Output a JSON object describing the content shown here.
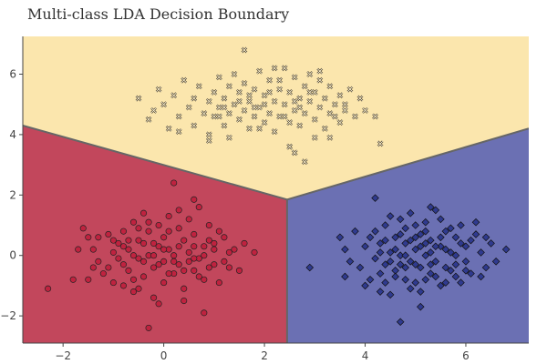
{
  "chart_data": {
    "type": "scatter",
    "title": "Multi-class LDA Decision Boundary",
    "xlabel": "",
    "ylabel": "",
    "xlim": [
      -2.8,
      7.25
    ],
    "ylim": [
      -2.9,
      7.25
    ],
    "x_ticks": [
      -2,
      0,
      2,
      4,
      6
    ],
    "y_ticks": [
      -2,
      0,
      2,
      4,
      6
    ],
    "tick_labels": {
      "x": [
        "−2",
        "0",
        "2",
        "4",
        "6"
      ],
      "y": [
        "−2",
        "0",
        "2",
        "4",
        "6"
      ]
    },
    "grid": false,
    "legend": "none",
    "regions": [
      {
        "color": "#c2475c",
        "polygon": [
          [
            -2.8,
            -2.9
          ],
          [
            2.45,
            -2.9
          ],
          [
            2.45,
            1.85
          ],
          [
            -2.8,
            4.3
          ]
        ]
      },
      {
        "color": "#6b70b3",
        "polygon": [
          [
            2.45,
            -2.9
          ],
          [
            7.25,
            -2.9
          ],
          [
            7.25,
            4.2
          ],
          [
            2.45,
            1.85
          ]
        ]
      },
      {
        "color": "#fbe6ad",
        "polygon": [
          [
            -2.8,
            4.3
          ],
          [
            2.45,
            1.85
          ],
          [
            7.25,
            4.2
          ],
          [
            7.25,
            7.25
          ],
          [
            -2.8,
            7.25
          ]
        ]
      }
    ],
    "boundary_color": "#666666",
    "boundaries": [
      [
        [
          -2.8,
          4.3
        ],
        [
          2.45,
          1.85
        ]
      ],
      [
        [
          2.45,
          1.85
        ],
        [
          7.25,
          4.2
        ]
      ],
      [
        [
          2.45,
          1.85
        ],
        [
          2.45,
          -2.9
        ]
      ]
    ],
    "series": [
      {
        "marker": "circle",
        "color": "#c0223f",
        "points": [
          [
            -2.3,
            -1.1
          ],
          [
            -1.6,
            0.9
          ],
          [
            -1.5,
            0.6
          ],
          [
            -1.4,
            0.2
          ],
          [
            -1.3,
            -0.2
          ],
          [
            -1.5,
            -0.8
          ],
          [
            -1.2,
            -0.6
          ],
          [
            -1.1,
            -0.4
          ],
          [
            -1.0,
            0.1
          ],
          [
            -0.9,
            0.4
          ],
          [
            -1.0,
            -0.9
          ],
          [
            -0.8,
            -0.3
          ],
          [
            -0.8,
            0.8
          ],
          [
            -0.7,
            -0.5
          ],
          [
            -0.7,
            0.2
          ],
          [
            -0.6,
            1.1
          ],
          [
            -0.6,
            -1.2
          ],
          [
            -0.5,
            0.5
          ],
          [
            -0.5,
            -0.1
          ],
          [
            -0.4,
            1.4
          ],
          [
            -0.4,
            -0.7
          ],
          [
            -0.3,
            0.0
          ],
          [
            -0.3,
            0.8
          ],
          [
            -0.2,
            -0.4
          ],
          [
            -0.2,
            -1.4
          ],
          [
            -0.1,
            0.3
          ],
          [
            -0.1,
            1.0
          ],
          [
            0.0,
            -0.2
          ],
          [
            0.0,
            0.6
          ],
          [
            0.0,
            -0.9
          ],
          [
            0.1,
            0.2
          ],
          [
            0.1,
            1.3
          ],
          [
            0.2,
            -0.6
          ],
          [
            0.2,
            0.0
          ],
          [
            0.2,
            2.4
          ],
          [
            0.3,
            0.9
          ],
          [
            0.3,
            -0.3
          ],
          [
            0.4,
            0.5
          ],
          [
            0.4,
            -1.1
          ],
          [
            0.5,
            0.1
          ],
          [
            0.5,
            1.2
          ],
          [
            0.6,
            -0.5
          ],
          [
            0.6,
            0.7
          ],
          [
            0.7,
            -0.1
          ],
          [
            0.7,
            1.6
          ],
          [
            0.8,
            0.3
          ],
          [
            0.8,
            -0.8
          ],
          [
            0.9,
            1.0
          ],
          [
            1.0,
            -0.3
          ],
          [
            1.0,
            0.2
          ],
          [
            1.1,
            -0.9
          ],
          [
            1.2,
            0.6
          ],
          [
            1.3,
            -0.4
          ],
          [
            1.4,
            0.2
          ],
          [
            1.6,
            0.4
          ],
          [
            1.8,
            0.1
          ],
          [
            0.6,
            1.85
          ],
          [
            0.8,
            -1.9
          ],
          [
            -0.3,
            -2.4
          ],
          [
            -0.1,
            -1.6
          ],
          [
            -1.8,
            -0.8
          ],
          [
            -1.1,
            0.7
          ],
          [
            0.4,
            -1.5
          ],
          [
            1.2,
            -0.2
          ],
          [
            -0.6,
            0.0
          ],
          [
            0.9,
            0.5
          ],
          [
            -0.2,
            0.4
          ],
          [
            0.3,
            0.3
          ],
          [
            0.1,
            -0.6
          ],
          [
            -0.4,
            -0.2
          ],
          [
            -1.7,
            0.2
          ],
          [
            -0.9,
            -0.1
          ],
          [
            0.6,
            0.3
          ],
          [
            1.5,
            -0.5
          ],
          [
            -0.5,
            0.9
          ],
          [
            0.2,
            -0.2
          ],
          [
            -0.8,
            -1.0
          ],
          [
            0.7,
            -0.7
          ],
          [
            -0.2,
            0.0
          ],
          [
            0.5,
            -0.2
          ],
          [
            1.1,
            0.8
          ],
          [
            -1.3,
            0.6
          ],
          [
            -0.7,
            0.5
          ],
          [
            0.0,
            0.2
          ],
          [
            0.4,
            -0.5
          ],
          [
            -0.1,
            -0.3
          ],
          [
            1.3,
            0.1
          ],
          [
            -1.4,
            -0.4
          ],
          [
            0.8,
            0.0
          ],
          [
            -0.3,
            1.1
          ],
          [
            -0.6,
            -0.8
          ],
          [
            0.9,
            -0.4
          ],
          [
            0.3,
            1.5
          ],
          [
            -1.0,
            0.5
          ],
          [
            0.6,
            -0.1
          ],
          [
            -0.4,
            0.4
          ],
          [
            1.0,
            0.4
          ],
          [
            -0.8,
            0.3
          ],
          [
            0.1,
            0.8
          ],
          [
            -0.5,
            -1.1
          ]
        ]
      },
      {
        "marker": "diamond",
        "color": "#2f3a8f",
        "points": [
          [
            2.9,
            -0.4
          ],
          [
            3.5,
            0.6
          ],
          [
            3.6,
            0.2
          ],
          [
            3.7,
            -0.2
          ],
          [
            3.6,
            -0.7
          ],
          [
            3.8,
            0.8
          ],
          [
            3.9,
            -0.4
          ],
          [
            4.0,
            0.3
          ],
          [
            4.0,
            -1.0
          ],
          [
            4.1,
            0.6
          ],
          [
            4.2,
            -0.1
          ],
          [
            4.2,
            1.9
          ],
          [
            4.3,
            0.4
          ],
          [
            4.3,
            -0.6
          ],
          [
            4.4,
            1.0
          ],
          [
            4.4,
            -0.3
          ],
          [
            4.5,
            0.1
          ],
          [
            4.5,
            -1.3
          ],
          [
            4.6,
            0.6
          ],
          [
            4.6,
            -0.5
          ],
          [
            4.7,
            1.2
          ],
          [
            4.7,
            0.0
          ],
          [
            4.8,
            -0.8
          ],
          [
            4.8,
            0.4
          ],
          [
            4.9,
            1.4
          ],
          [
            4.9,
            -0.2
          ],
          [
            5.0,
            0.2
          ],
          [
            5.0,
            -0.9
          ],
          [
            5.1,
            0.7
          ],
          [
            5.1,
            -0.4
          ],
          [
            5.2,
            1.1
          ],
          [
            5.2,
            0.0
          ],
          [
            5.3,
            -0.6
          ],
          [
            5.3,
            0.5
          ],
          [
            5.4,
            1.5
          ],
          [
            5.4,
            -0.2
          ],
          [
            5.5,
            0.3
          ],
          [
            5.5,
            -1.0
          ],
          [
            5.6,
            0.8
          ],
          [
            5.6,
            -0.4
          ],
          [
            5.7,
            0.1
          ],
          [
            5.8,
            -0.7
          ],
          [
            5.8,
            0.6
          ],
          [
            5.9,
            1.0
          ],
          [
            6.0,
            -0.2
          ],
          [
            6.0,
            0.3
          ],
          [
            6.1,
            -0.6
          ],
          [
            6.2,
            0.7
          ],
          [
            6.3,
            0.1
          ],
          [
            6.4,
            -0.4
          ],
          [
            6.5,
            0.4
          ],
          [
            6.6,
            -0.2
          ],
          [
            6.8,
            0.2
          ],
          [
            4.7,
            -2.2
          ],
          [
            5.1,
            -1.7
          ],
          [
            5.3,
            1.6
          ],
          [
            4.5,
            1.3
          ],
          [
            5.9,
            -0.9
          ],
          [
            6.2,
            1.1
          ],
          [
            4.1,
            -0.8
          ],
          [
            4.8,
            0.9
          ],
          [
            5.0,
            -0.3
          ],
          [
            5.2,
            0.4
          ],
          [
            4.6,
            0.2
          ],
          [
            5.5,
            0.6
          ],
          [
            5.7,
            -0.5
          ],
          [
            4.9,
            0.5
          ],
          [
            5.4,
            -0.7
          ],
          [
            4.3,
            0.1
          ],
          [
            5.8,
            0.0
          ],
          [
            5.1,
            -1.2
          ],
          [
            4.4,
            -0.9
          ],
          [
            6.1,
            0.5
          ],
          [
            4.7,
            0.7
          ],
          [
            5.3,
            0.1
          ],
          [
            5.6,
            0.2
          ],
          [
            4.8,
            -0.4
          ],
          [
            5.0,
            1.0
          ],
          [
            4.5,
            -0.2
          ],
          [
            5.9,
            0.4
          ],
          [
            6.3,
            -0.7
          ],
          [
            4.2,
            0.8
          ],
          [
            5.2,
            -0.8
          ],
          [
            4.6,
            -0.7
          ],
          [
            5.5,
            1.2
          ],
          [
            4.9,
            -1.1
          ],
          [
            5.7,
            0.9
          ],
          [
            4.4,
            0.5
          ],
          [
            5.4,
            0.3
          ],
          [
            6.0,
            -0.5
          ],
          [
            5.1,
            0.3
          ],
          [
            4.8,
            0.0
          ],
          [
            5.6,
            -0.9
          ],
          [
            5.0,
            0.6
          ],
          [
            4.3,
            -1.2
          ],
          [
            5.3,
            -0.3
          ],
          [
            6.4,
            0.6
          ],
          [
            4.7,
            -0.3
          ],
          [
            5.8,
            -0.3
          ],
          [
            5.2,
            0.8
          ]
        ]
      },
      {
        "marker": "x",
        "color": "#3d3526",
        "points": [
          [
            -0.5,
            5.2
          ],
          [
            -0.3,
            4.5
          ],
          [
            -0.2,
            4.8
          ],
          [
            -0.1,
            5.5
          ],
          [
            0.0,
            5.0
          ],
          [
            0.1,
            4.2
          ],
          [
            0.2,
            5.3
          ],
          [
            0.3,
            4.6
          ],
          [
            0.4,
            5.8
          ],
          [
            0.5,
            4.9
          ],
          [
            0.6,
            5.2
          ],
          [
            0.6,
            4.3
          ],
          [
            0.7,
            5.6
          ],
          [
            0.8,
            4.7
          ],
          [
            0.9,
            5.1
          ],
          [
            0.9,
            4.0
          ],
          [
            1.0,
            5.4
          ],
          [
            1.0,
            4.6
          ],
          [
            1.1,
            5.9
          ],
          [
            1.1,
            4.9
          ],
          [
            1.2,
            5.2
          ],
          [
            1.2,
            4.3
          ],
          [
            1.3,
            5.6
          ],
          [
            1.3,
            4.7
          ],
          [
            1.4,
            5.0
          ],
          [
            1.4,
            6.0
          ],
          [
            1.5,
            4.5
          ],
          [
            1.5,
            5.4
          ],
          [
            1.6,
            4.8
          ],
          [
            1.6,
            5.7
          ],
          [
            1.7,
            4.2
          ],
          [
            1.7,
            5.1
          ],
          [
            1.8,
            4.6
          ],
          [
            1.8,
            5.5
          ],
          [
            1.9,
            4.9
          ],
          [
            1.9,
            6.1
          ],
          [
            2.0,
            4.4
          ],
          [
            2.0,
            5.3
          ],
          [
            2.1,
            4.7
          ],
          [
            2.1,
            5.8
          ],
          [
            2.2,
            5.1
          ],
          [
            2.2,
            4.1
          ],
          [
            2.3,
            5.5
          ],
          [
            2.3,
            4.6
          ],
          [
            2.4,
            6.2
          ],
          [
            2.4,
            5.0
          ],
          [
            2.5,
            4.4
          ],
          [
            2.5,
            5.4
          ],
          [
            2.6,
            4.8
          ],
          [
            2.6,
            5.9
          ],
          [
            2.7,
            5.2
          ],
          [
            2.7,
            4.3
          ],
          [
            2.8,
            5.6
          ],
          [
            2.8,
            4.7
          ],
          [
            2.9,
            5.1
          ],
          [
            2.9,
            6.0
          ],
          [
            3.0,
            4.5
          ],
          [
            3.0,
            5.4
          ],
          [
            3.1,
            4.9
          ],
          [
            3.1,
            5.8
          ],
          [
            3.2,
            5.2
          ],
          [
            3.2,
            4.2
          ],
          [
            3.3,
            5.6
          ],
          [
            3.3,
            4.7
          ],
          [
            3.4,
            5.0
          ],
          [
            3.5,
            4.4
          ],
          [
            3.5,
            5.3
          ],
          [
            3.6,
            4.8
          ],
          [
            3.7,
            5.5
          ],
          [
            3.8,
            4.6
          ],
          [
            3.9,
            5.2
          ],
          [
            4.0,
            4.8
          ],
          [
            4.2,
            4.6
          ],
          [
            4.3,
            3.7
          ],
          [
            1.6,
            6.8
          ],
          [
            0.9,
            3.8
          ],
          [
            1.3,
            3.9
          ],
          [
            2.5,
            3.6
          ],
          [
            2.8,
            3.1
          ],
          [
            2.6,
            3.4
          ],
          [
            3.0,
            3.9
          ],
          [
            3.3,
            3.9
          ],
          [
            3.1,
            6.1
          ],
          [
            2.2,
            6.2
          ],
          [
            0.3,
            4.1
          ],
          [
            2.0,
            5.0
          ],
          [
            2.4,
            4.6
          ],
          [
            1.7,
            5.3
          ],
          [
            2.7,
            4.9
          ],
          [
            1.9,
            4.2
          ],
          [
            2.3,
            5.8
          ],
          [
            1.5,
            5.1
          ],
          [
            2.9,
            5.4
          ],
          [
            1.1,
            4.6
          ],
          [
            3.4,
            4.6
          ],
          [
            2.1,
            5.4
          ],
          [
            2.6,
            5.1
          ],
          [
            1.8,
            4.9
          ],
          [
            3.6,
            5.0
          ],
          [
            1.2,
            4.9
          ]
        ]
      }
    ]
  }
}
